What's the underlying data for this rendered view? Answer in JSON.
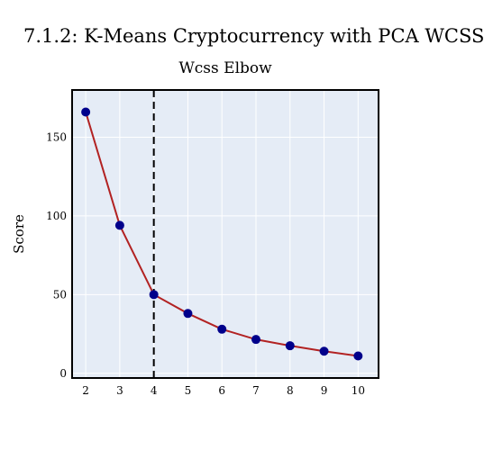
{
  "page_title": "7.1.2: K-Means Cryptocurrency with PCA WCSS",
  "chart_data": {
    "type": "line",
    "title": "Wcss Elbow",
    "xlabel": "",
    "ylabel": "Score",
    "x": [
      2,
      3,
      4,
      5,
      6,
      7,
      8,
      9,
      10
    ],
    "series": [
      {
        "values": [
          166,
          94,
          50,
          38,
          28,
          21.5,
          17.5,
          14,
          11
        ]
      }
    ],
    "xticks": [
      "2",
      "3",
      "4",
      "5",
      "6",
      "7",
      "8",
      "9",
      "10"
    ],
    "yticks": [
      "0",
      "50",
      "100",
      "150"
    ],
    "xlim": [
      1.6,
      10.6
    ],
    "ylim": [
      -3,
      180
    ],
    "vline_x": 4,
    "grid": true,
    "colors": {
      "plot_bg": "#e5ecf6",
      "grid": "#ffffff",
      "line": "#b22222",
      "marker": "#00008b",
      "vline": "#000000",
      "border": "#000000"
    }
  }
}
